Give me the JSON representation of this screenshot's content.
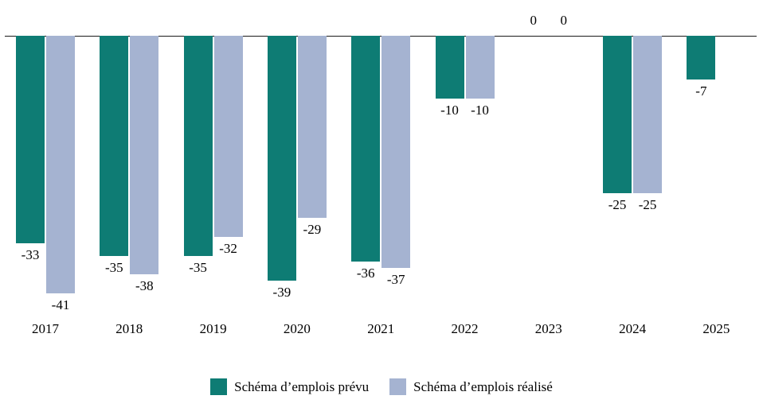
{
  "chart_data": {
    "type": "bar",
    "title": "",
    "xlabel": "",
    "ylabel": "",
    "categories": [
      "2017",
      "2018",
      "2019",
      "2020",
      "2021",
      "2022",
      "2023",
      "2024",
      "2025"
    ],
    "series": [
      {
        "name": "Schéma d’emplois prévu",
        "color": "#0e7c74",
        "values": [
          -33,
          -35,
          -35,
          -39,
          -36,
          -10,
          0,
          -25,
          -7
        ]
      },
      {
        "name": "Schéma d’emplois réalisé",
        "color": "#a5b3d1",
        "values": [
          -41,
          -38,
          -32,
          -29,
          -37,
          -10,
          0,
          -25,
          null
        ]
      }
    ],
    "ylim": [
      -41,
      0
    ],
    "grid": false,
    "legend_position": "bottom",
    "data_labels": true
  }
}
